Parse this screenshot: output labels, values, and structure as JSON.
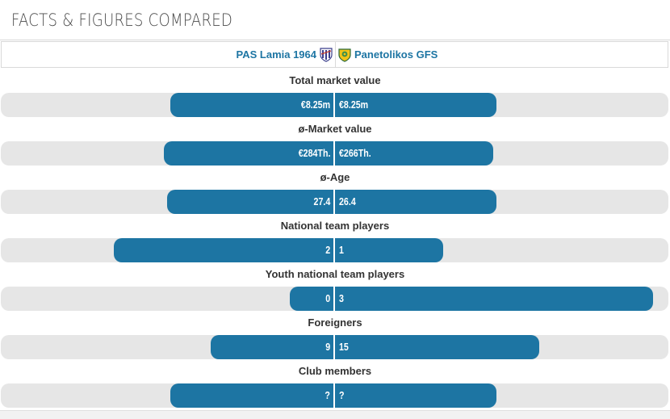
{
  "header": {
    "title": "FACTS & FIGURES COMPARED"
  },
  "clubs": {
    "left": {
      "name": "PAS Lamia 1964",
      "crest_icon": "pas-lamia-crest-icon"
    },
    "right": {
      "name": "Panetolikos GFS",
      "crest_icon": "panetolikos-crest-icon"
    }
  },
  "colors": {
    "bar": "#1d75a3",
    "track": "#e6e6e6",
    "club_name": "#1d75a3"
  },
  "stats": [
    {
      "label": "Total market value",
      "left": "€8.25m",
      "right": "€8.25m",
      "left_share": 0.49,
      "right_share": 0.49
    },
    {
      "label": "ø-Market value",
      "left": "€284Th.",
      "right": "€266Th.",
      "left_share": 0.51,
      "right_share": 0.48
    },
    {
      "label": "ø-Age",
      "left": "27.4",
      "right": "26.4",
      "left_share": 0.5,
      "right_share": 0.49
    },
    {
      "label": "National team players",
      "left": "2",
      "right": "1",
      "left_share": 0.66,
      "right_share": 0.33
    },
    {
      "label": "Youth national team players",
      "left": "0",
      "right": "3",
      "left_share": 0.13,
      "right_share": 0.96
    },
    {
      "label": "Foreigners",
      "left": "9",
      "right": "15",
      "left_share": 0.37,
      "right_share": 0.62
    },
    {
      "label": "Club members",
      "left": "?",
      "right": "?",
      "left_share": 0.49,
      "right_share": 0.49
    }
  ]
}
